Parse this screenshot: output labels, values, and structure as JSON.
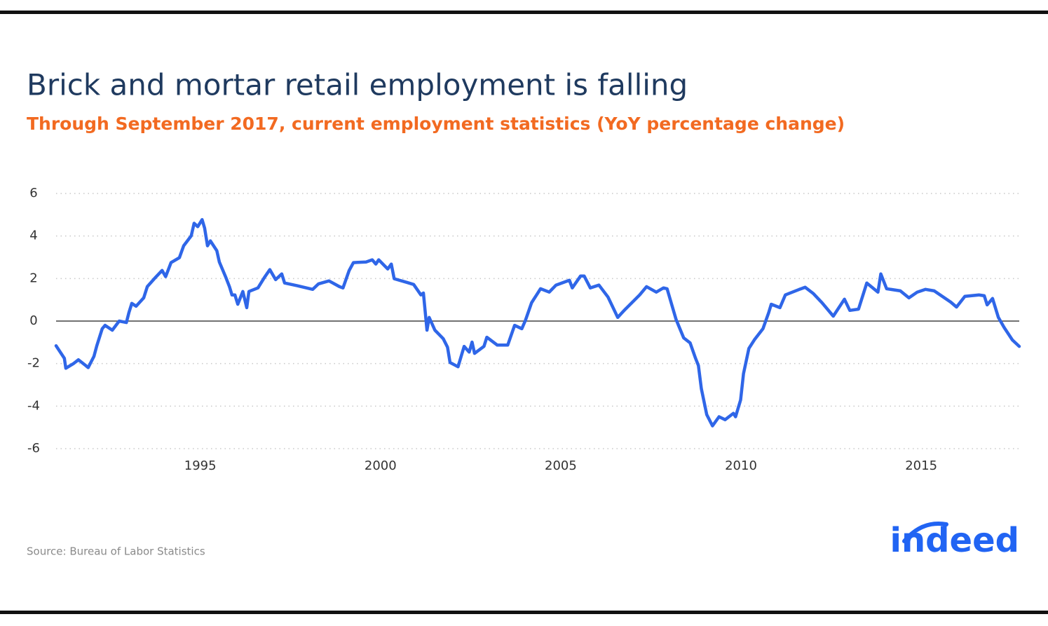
{
  "chart_data": {
    "type": "line",
    "title": "Brick and mortar retail employment is falling",
    "subtitle": "Through September 2017, current employment statistics (YoY percentage change)",
    "source": "Source: Bureau of Labor Statistics",
    "color": "#2f66e8",
    "grid": true,
    "xlim": [
      1991,
      2017.72
    ],
    "xticks": [
      1995,
      2000,
      2005,
      2010,
      2015
    ],
    "ylim": [
      -6,
      6
    ],
    "yticks": [
      -6,
      -4,
      -2,
      0,
      2,
      4,
      6
    ],
    "x": [
      1991.0,
      1991.23,
      1991.27,
      1991.49,
      1991.62,
      1991.82,
      1991.89,
      1992.05,
      1992.13,
      1992.28,
      1992.36,
      1992.56,
      1992.75,
      1992.95,
      1993.02,
      1993.1,
      1993.22,
      1993.43,
      1993.53,
      1993.74,
      1993.94,
      1994.04,
      1994.19,
      1994.42,
      1994.54,
      1994.75,
      1994.83,
      1994.93,
      1995.05,
      1995.12,
      1995.2,
      1995.28,
      1995.46,
      1995.53,
      1995.71,
      1995.81,
      1995.88,
      1995.96,
      1996.04,
      1996.18,
      1996.29,
      1996.35,
      1996.6,
      1996.78,
      1996.93,
      1997.09,
      1997.26,
      1997.34,
      1997.69,
      1998.12,
      1998.28,
      1998.57,
      1998.86,
      1998.96,
      1999.13,
      1999.25,
      1999.6,
      1999.77,
      1999.87,
      1999.95,
      2000.2,
      2000.3,
      2000.38,
      2000.73,
      2000.92,
      2001.12,
      2001.19,
      2001.29,
      2001.35,
      2001.51,
      2001.74,
      2001.86,
      2001.93,
      2002.15,
      2002.32,
      2002.46,
      2002.54,
      2002.61,
      2002.87,
      2002.95,
      2003.24,
      2003.53,
      2003.72,
      2003.92,
      2004.02,
      2004.19,
      2004.44,
      2004.68,
      2004.87,
      2005.24,
      2005.32,
      2005.55,
      2005.65,
      2005.82,
      2006.06,
      2006.31,
      2006.58,
      2006.76,
      2007.19,
      2007.38,
      2007.65,
      2007.85,
      2007.95,
      2008.2,
      2008.41,
      2008.59,
      2008.74,
      2008.82,
      2008.9,
      2009.05,
      2009.21,
      2009.39,
      2009.56,
      2009.79,
      2009.85,
      2009.99,
      2010.07,
      2010.22,
      2010.38,
      2010.61,
      2010.77,
      2010.84,
      2011.08,
      2011.23,
      2011.62,
      2011.78,
      2012.01,
      2012.25,
      2012.56,
      2012.87,
      2013.02,
      2013.26,
      2013.49,
      2013.8,
      2013.88,
      2014.04,
      2014.42,
      2014.66,
      2014.89,
      2015.12,
      2015.36,
      2015.82,
      2015.98,
      2016.21,
      2016.6,
      2016.75,
      2016.83,
      2016.98,
      2017.14,
      2017.3,
      2017.53,
      2017.72
    ],
    "values": [
      -1.16,
      -1.75,
      -2.22,
      -1.99,
      -1.82,
      -2.09,
      -2.19,
      -1.66,
      -1.16,
      -0.36,
      -0.2,
      -0.43,
      0,
      -0.07,
      0.4,
      0.83,
      0.7,
      1.09,
      1.62,
      2.02,
      2.38,
      2.09,
      2.75,
      2.98,
      3.54,
      4.01,
      4.6,
      4.44,
      4.77,
      4.37,
      3.54,
      3.77,
      3.31,
      2.78,
      2.05,
      1.62,
      1.23,
      1.23,
      0.79,
      1.39,
      0.63,
      1.39,
      1.56,
      2.05,
      2.42,
      1.95,
      2.22,
      1.79,
      1.66,
      1.49,
      1.75,
      1.89,
      1.62,
      1.56,
      2.38,
      2.75,
      2.78,
      2.88,
      2.68,
      2.88,
      2.45,
      2.68,
      1.99,
      1.82,
      1.72,
      1.23,
      1.32,
      -0.43,
      0.17,
      -0.43,
      -0.83,
      -1.23,
      -1.95,
      -2.15,
      -1.19,
      -1.46,
      -0.99,
      -1.52,
      -1.19,
      -0.76,
      -1.13,
      -1.13,
      -0.2,
      -0.36,
      0.03,
      0.86,
      1.52,
      1.36,
      1.69,
      1.92,
      1.56,
      2.12,
      2.12,
      1.56,
      1.69,
      1.13,
      0.17,
      0.5,
      1.23,
      1.62,
      1.36,
      1.56,
      1.52,
      0.07,
      -0.79,
      -1.03,
      -1.75,
      -2.09,
      -3.18,
      -4.4,
      -4.93,
      -4.5,
      -4.64,
      -4.34,
      -4.5,
      -3.71,
      -2.48,
      -1.29,
      -0.86,
      -0.36,
      0.4,
      0.79,
      0.63,
      1.23,
      1.49,
      1.59,
      1.29,
      0.86,
      0.23,
      1.03,
      0.5,
      0.56,
      1.79,
      1.36,
      2.22,
      1.52,
      1.42,
      1.09,
      1.36,
      1.49,
      1.42,
      0.89,
      0.66,
      1.16,
      1.23,
      1.19,
      0.76,
      1.06,
      0.17,
      -0.3,
      -0.89,
      -1.19
    ]
  },
  "logo": "indeed"
}
